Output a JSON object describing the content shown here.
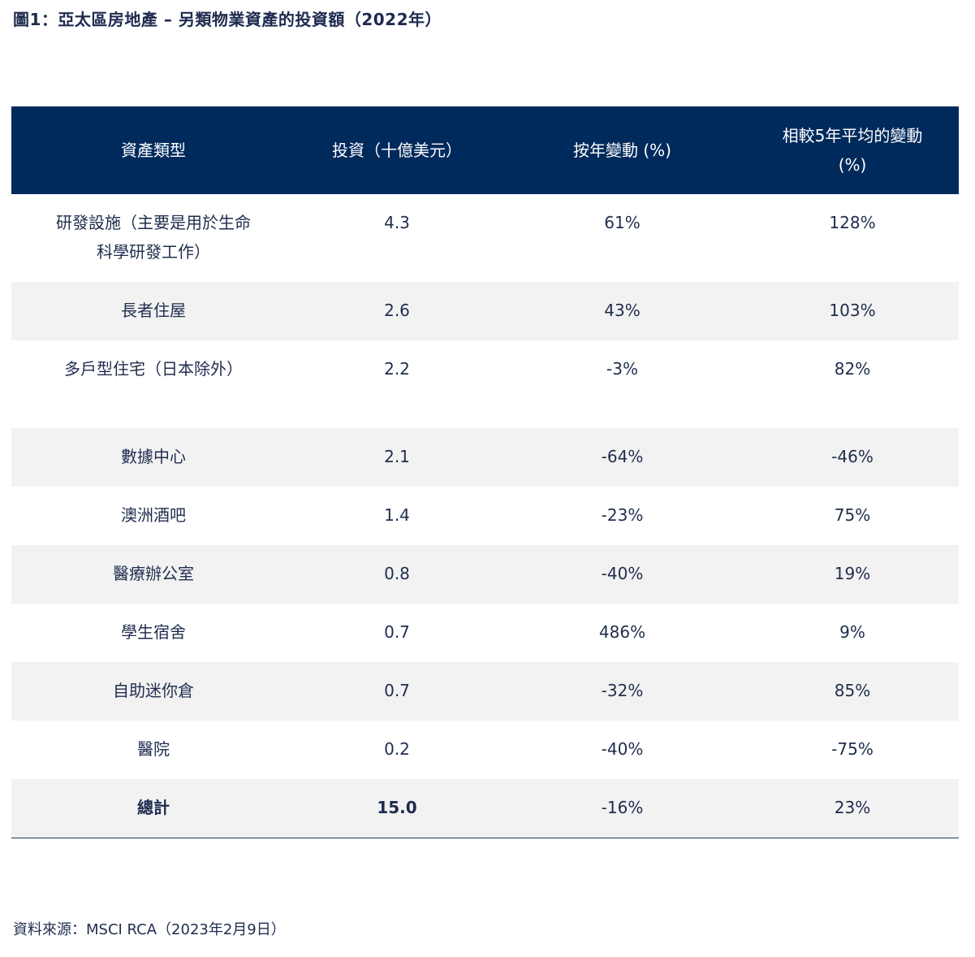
{
  "title": "圖1：亞太區房地產 – 另類物業資產的投資額（2022年）",
  "table": {
    "headers": [
      "資產類型",
      "投資（十億美元）",
      "按年變動 (%)",
      "相較5年平均的變動 (%)"
    ],
    "rows": [
      {
        "type": "研發設施（主要是用於生命科學研發工作）",
        "investment": "4.3",
        "yoy": "61%",
        "vs5y": "128%"
      },
      {
        "type": "長者住屋",
        "investment": "2.6",
        "yoy": "43%",
        "vs5y": "103%"
      },
      {
        "type": "多戶型住宅（日本除外）",
        "investment": "2.2",
        "yoy": "-3%",
        "vs5y": "82%"
      },
      {
        "type": "數據中心",
        "investment": "2.1",
        "yoy": "-64%",
        "vs5y": "-46%"
      },
      {
        "type": "澳洲酒吧",
        "investment": "1.4",
        "yoy": "-23%",
        "vs5y": "75%"
      },
      {
        "type": "醫療辦公室",
        "investment": "0.8",
        "yoy": "-40%",
        "vs5y": "19%"
      },
      {
        "type": "學生宿舍",
        "investment": "0.7",
        "yoy": "486%",
        "vs5y": "9%"
      },
      {
        "type": "自助迷你倉",
        "investment": "0.7",
        "yoy": "-32%",
        "vs5y": "85%"
      },
      {
        "type": "醫院",
        "investment": "0.2",
        "yoy": "-40%",
        "vs5y": "-75%"
      }
    ],
    "total": {
      "type": "總計",
      "investment": "15.0",
      "yoy": "-16%",
      "vs5y": "23%"
    }
  },
  "source": "資料來源：MSCI RCA（2023年2月9日）",
  "colors": {
    "header_bg": "#002a5c",
    "header_text": "#ffffff",
    "alt_row_bg": "#f2f2f2",
    "text": "#1f2d4d"
  }
}
